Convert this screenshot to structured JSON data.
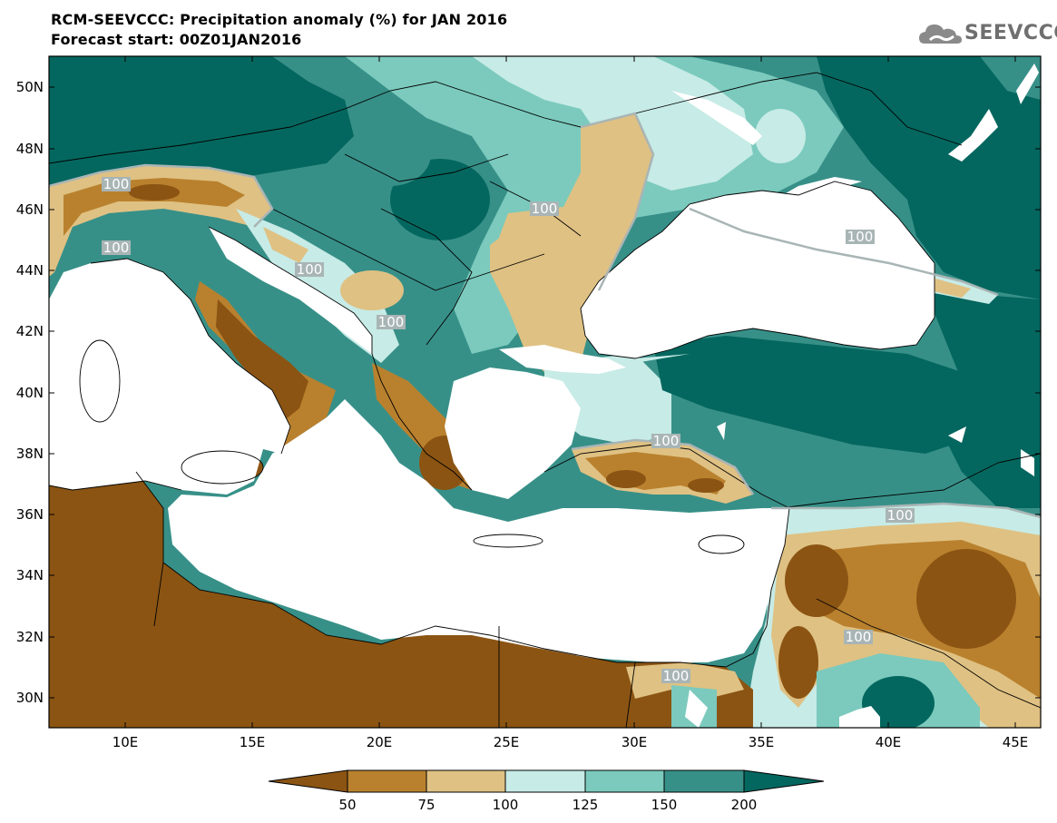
{
  "title": {
    "line1": "RCM-SEEVCCC: Precipitation anomaly (%) for JAN 2016",
    "line2": "Forecast start: 00Z01JAN2016"
  },
  "logo": {
    "text": "SEEVCCC",
    "icon": "cloud-icon"
  },
  "map": {
    "lon_range": [
      7,
      46
    ],
    "lat_range": [
      29,
      51
    ],
    "lat_ticks": [
      "30N",
      "32N",
      "34N",
      "36N",
      "38N",
      "40N",
      "42N",
      "44N",
      "46N",
      "48N",
      "50N"
    ],
    "lon_ticks": [
      "10E",
      "15E",
      "20E",
      "25E",
      "30E",
      "35E",
      "40E",
      "45E"
    ],
    "contour_label": "100"
  },
  "colorbar": {
    "ticks": [
      "50",
      "75",
      "100",
      "125",
      "150",
      "200"
    ],
    "colors": [
      "#8b5413",
      "#b9812e",
      "#dfc183",
      "#c7ebe6",
      "#7bcabd",
      "#379088",
      "#04675f"
    ]
  }
}
